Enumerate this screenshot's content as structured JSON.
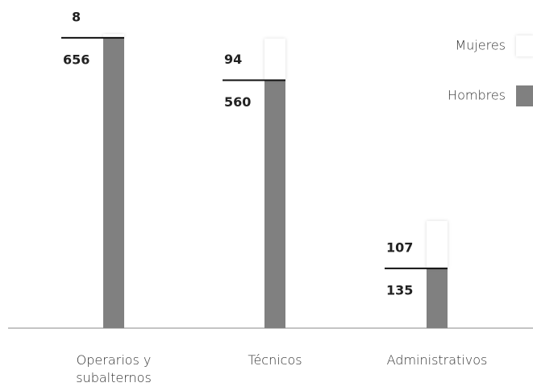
{
  "chart_data": {
    "type": "stacked-bar",
    "categories": [
      "Operarios y subalternos",
      "Técnicos",
      "Administrativos"
    ],
    "series": [
      {
        "name": "Hombres",
        "color": "#808080",
        "values": [
          656,
          560,
          135
        ]
      },
      {
        "name": "Mujeres",
        "color": "#ffffff",
        "values": [
          8,
          94,
          107
        ]
      }
    ],
    "legend": "top-right"
  }
}
